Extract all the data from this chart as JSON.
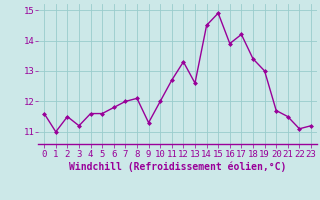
{
  "x": [
    0,
    1,
    2,
    3,
    4,
    5,
    6,
    7,
    8,
    9,
    10,
    11,
    12,
    13,
    14,
    15,
    16,
    17,
    18,
    19,
    20,
    21,
    22,
    23
  ],
  "y": [
    11.6,
    11.0,
    11.5,
    11.2,
    11.6,
    11.6,
    11.8,
    12.0,
    12.1,
    11.3,
    12.0,
    12.7,
    13.3,
    12.6,
    14.5,
    14.9,
    13.9,
    14.2,
    13.4,
    13.0,
    11.7,
    11.5,
    11.1,
    11.2
  ],
  "line_color": "#990099",
  "marker": "D",
  "marker_size": 2.0,
  "bg_color": "#cce8e8",
  "grid_color": "#99cccc",
  "xlabel": "Windchill (Refroidissement éolien,°C)",
  "xlabel_fontsize": 7,
  "xtick_labels": [
    "0",
    "1",
    "2",
    "3",
    "4",
    "5",
    "6",
    "7",
    "8",
    "9",
    "10",
    "11",
    "12",
    "13",
    "14",
    "15",
    "16",
    "17",
    "18",
    "19",
    "20",
    "21",
    "22",
    "23"
  ],
  "ylim": [
    10.6,
    15.2
  ],
  "yticks": [
    11,
    12,
    13,
    14,
    15
  ],
  "tick_fontsize": 6.5,
  "linewidth": 1.0
}
